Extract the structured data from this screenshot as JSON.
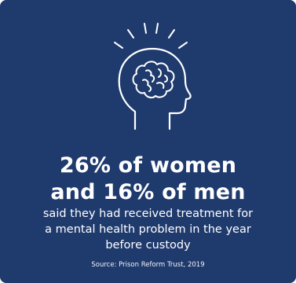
{
  "infographic": {
    "background_color": "#1f3a6d",
    "text_color": "#ffffff",
    "icon": "head-brain-icon",
    "headline_line1": "26% of women",
    "headline_line2": "and 16% of men",
    "description_line1": "said they had received treatment for",
    "description_line2": "a mental health problem in the year",
    "description_line3": "before custody",
    "source": "Source: Prison Reform Trust, 2019"
  }
}
